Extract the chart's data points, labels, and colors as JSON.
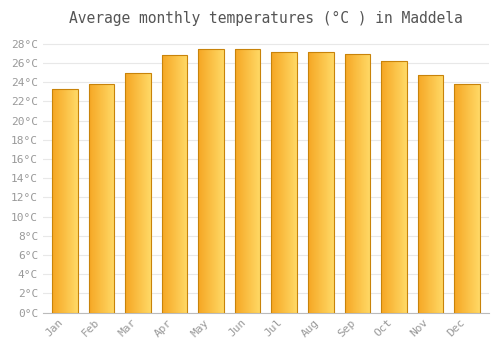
{
  "title": "Average monthly temperatures (°C ) in Maddela",
  "months": [
    "Jan",
    "Feb",
    "Mar",
    "Apr",
    "May",
    "Jun",
    "Jul",
    "Aug",
    "Sep",
    "Oct",
    "Nov",
    "Dec"
  ],
  "temperatures": [
    23.3,
    23.8,
    25.0,
    26.8,
    27.5,
    27.5,
    27.1,
    27.1,
    26.9,
    26.2,
    24.8,
    23.8
  ],
  "bar_color_left": "#F5A623",
  "bar_color_right": "#FFD966",
  "bar_edge_color": "#C8830A",
  "ylim": [
    0,
    29
  ],
  "ytick_step": 2,
  "background_color": "#FFFFFF",
  "grid_color": "#E8E8E8",
  "title_fontsize": 10.5,
  "tick_fontsize": 8,
  "tick_label_color": "#999999",
  "font_family": "monospace",
  "bar_width": 0.7
}
